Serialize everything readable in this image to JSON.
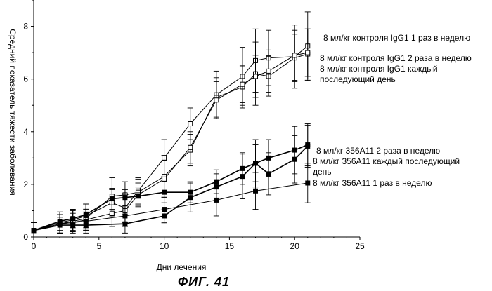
{
  "chart_data": {
    "type": "line",
    "title": "",
    "xlabel": "Дни лечения",
    "ylabel": "Средний показатель тяжести заболевания",
    "xlim": [
      0,
      25
    ],
    "ylim": [
      0,
      9
    ],
    "xticks": [
      0,
      5,
      10,
      15,
      20,
      25
    ],
    "yticks": [
      0,
      2,
      4,
      6,
      8
    ],
    "grid": false,
    "legend_placement": "right, next to line ends",
    "series": [
      {
        "name": "8 мл/кг контроля IgG1 1 раз в неделю",
        "marker": "open-square",
        "x": [
          0,
          2,
          3,
          4,
          6,
          7,
          8,
          10,
          12,
          14,
          16,
          17,
          18,
          20,
          21
        ],
        "y": [
          0.25,
          0.55,
          0.65,
          0.8,
          1.3,
          1.1,
          1.75,
          3.0,
          4.3,
          5.4,
          6.1,
          6.7,
          6.8,
          6.85,
          7.25
        ],
        "err": [
          0.3,
          0.4,
          0.4,
          0.45,
          0.5,
          0.55,
          0.5,
          0.7,
          0.6,
          0.9,
          1.1,
          1.2,
          1.05,
          1.2,
          1.3
        ]
      },
      {
        "name": "8 мл/кг контроля IgG1 2 раза в неделю",
        "marker": "open-square",
        "x": [
          0,
          2,
          3,
          4,
          6,
          7,
          8,
          10,
          12,
          14,
          16,
          17,
          18,
          20,
          21
        ],
        "y": [
          0.25,
          0.5,
          0.6,
          0.7,
          1.55,
          1.6,
          1.7,
          2.3,
          3.3,
          5.3,
          5.7,
          6.2,
          6.1,
          6.8,
          6.95
        ],
        "err": [
          0.3,
          0.35,
          0.4,
          0.4,
          0.7,
          0.5,
          0.5,
          0.8,
          0.6,
          0.75,
          0.8,
          1.2,
          0.75,
          0.9,
          0.95
        ]
      },
      {
        "name": "8 мл/кг контроля IgG1 каждый последующий день",
        "marker": "open-square",
        "x": [
          0,
          2,
          3,
          4,
          6,
          7,
          8,
          10,
          12,
          14,
          16,
          17,
          18,
          20,
          21
        ],
        "y": [
          0.25,
          0.5,
          0.55,
          0.65,
          0.9,
          1.0,
          1.6,
          2.2,
          3.4,
          5.2,
          5.8,
          6.1,
          6.3,
          6.9,
          7.0
        ],
        "err": [
          0.3,
          0.35,
          0.35,
          0.4,
          0.5,
          0.6,
          0.45,
          0.7,
          0.6,
          0.7,
          0.7,
          0.8,
          0.8,
          0.95,
          0.9
        ]
      },
      {
        "name": "8 мл/кг 356A11 2 раза в неделю",
        "marker": "filled-square",
        "x": [
          0,
          2,
          3,
          4,
          6,
          7,
          8,
          10,
          12,
          14,
          16,
          17,
          18,
          20,
          21
        ],
        "y": [
          0.25,
          0.6,
          0.7,
          0.85,
          1.45,
          1.5,
          1.55,
          1.7,
          1.7,
          2.1,
          2.6,
          2.8,
          3.0,
          3.3,
          3.5
        ],
        "err": [
          0.3,
          0.35,
          0.35,
          0.4,
          0.4,
          0.3,
          0.35,
          0.4,
          0.4,
          0.45,
          0.6,
          0.7,
          0.7,
          0.9,
          0.8
        ]
      },
      {
        "name": "8 мл/кг 356A11 каждый последующий день",
        "marker": "filled-square",
        "x": [
          0,
          2,
          3,
          4,
          7,
          10,
          12,
          14,
          16,
          17,
          18,
          20,
          21
        ],
        "y": [
          0.25,
          0.45,
          0.45,
          0.45,
          0.5,
          0.8,
          1.5,
          1.9,
          2.3,
          2.8,
          2.4,
          2.95,
          3.45
        ],
        "err": [
          0.3,
          0.3,
          0.3,
          0.3,
          0.35,
          0.3,
          0.55,
          0.5,
          0.85,
          0.9,
          0.8,
          0.9,
          0.8
        ]
      },
      {
        "name": "8 мл/кг 356A11 1 раз в неделю",
        "marker": "filled-square",
        "x": [
          0,
          2,
          4,
          7,
          10,
          14,
          17,
          21
        ],
        "y": [
          0.25,
          0.5,
          0.6,
          0.8,
          1.05,
          1.4,
          1.75,
          2.05
        ],
        "err": [
          0.3,
          0.35,
          0.35,
          0.4,
          0.5,
          0.6,
          0.7,
          0.75
        ]
      }
    ],
    "legend_labels": [
      {
        "lines": [
          "8 мл/кг контроля IgG1 1 раз в неделю"
        ]
      },
      {
        "lines": [
          "8 мл/кг контроля IgG1 2 раза в неделю"
        ]
      },
      {
        "lines": [
          "8 мл/кг контроля IgG1 каждый",
          "последующий день"
        ]
      },
      {
        "lines": [
          "8 мл/кг  356A11 2 раза в неделю"
        ]
      },
      {
        "lines": [
          "8 мл/кг  356A11 каждый последующий",
          "день"
        ]
      },
      {
        "lines": [
          "8 мл/кг  356A11 1 раз в неделю"
        ]
      }
    ]
  },
  "caption": "ФИГ. 41"
}
